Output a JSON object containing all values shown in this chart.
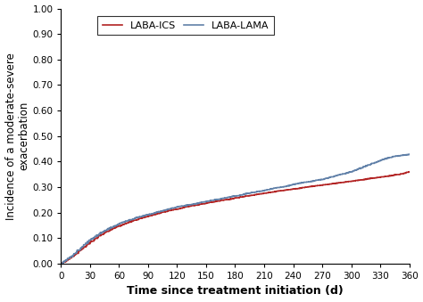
{
  "xlabel": "Time since treatment initiation (d)",
  "ylabel": "Incidence of a moderate-severe\nexacerbation",
  "xlim": [
    0,
    360
  ],
  "ylim": [
    0.0,
    1.0
  ],
  "xticks": [
    0,
    30,
    60,
    90,
    120,
    150,
    180,
    210,
    240,
    270,
    300,
    330,
    360
  ],
  "yticks": [
    0.0,
    0.1,
    0.2,
    0.3,
    0.4,
    0.5,
    0.6,
    0.7,
    0.8,
    0.9,
    1.0
  ],
  "laba_ics_color": "#b22222",
  "laba_lama_color": "#6080a8",
  "laba_ics_label": "LABA-ICS",
  "laba_lama_label": "LABA-LAMA",
  "line_width": 1.2,
  "laba_ics_x": [
    0,
    2,
    4,
    6,
    8,
    10,
    12,
    14,
    16,
    18,
    20,
    22,
    24,
    26,
    28,
    30,
    32,
    34,
    36,
    38,
    40,
    42,
    44,
    46,
    48,
    50,
    52,
    54,
    56,
    58,
    60,
    62,
    64,
    66,
    68,
    70,
    72,
    74,
    76,
    78,
    80,
    82,
    84,
    86,
    88,
    90,
    92,
    94,
    96,
    98,
    100,
    102,
    104,
    106,
    108,
    110,
    112,
    114,
    116,
    118,
    120,
    122,
    124,
    126,
    128,
    130,
    132,
    134,
    136,
    138,
    140,
    142,
    144,
    146,
    148,
    150,
    152,
    154,
    156,
    158,
    160,
    162,
    164,
    166,
    168,
    170,
    172,
    174,
    176,
    178,
    180,
    182,
    184,
    186,
    188,
    190,
    192,
    194,
    196,
    198,
    200,
    202,
    204,
    206,
    208,
    210,
    212,
    214,
    216,
    218,
    220,
    222,
    224,
    226,
    228,
    230,
    232,
    234,
    236,
    238,
    240,
    242,
    244,
    246,
    248,
    250,
    252,
    254,
    256,
    258,
    260,
    262,
    264,
    266,
    268,
    270,
    272,
    274,
    276,
    278,
    280,
    282,
    284,
    286,
    288,
    290,
    292,
    294,
    296,
    298,
    300,
    302,
    304,
    306,
    308,
    310,
    312,
    314,
    316,
    318,
    320,
    322,
    324,
    326,
    328,
    330,
    332,
    334,
    336,
    338,
    340,
    342,
    344,
    346,
    348,
    350,
    352,
    354,
    356,
    358,
    360
  ],
  "laba_ics_y": [
    0.0,
    0.003,
    0.007,
    0.012,
    0.017,
    0.022,
    0.028,
    0.034,
    0.04,
    0.047,
    0.053,
    0.059,
    0.065,
    0.071,
    0.077,
    0.083,
    0.088,
    0.093,
    0.099,
    0.104,
    0.109,
    0.114,
    0.118,
    0.122,
    0.126,
    0.13,
    0.134,
    0.138,
    0.141,
    0.144,
    0.147,
    0.15,
    0.153,
    0.156,
    0.159,
    0.162,
    0.164,
    0.167,
    0.17,
    0.172,
    0.175,
    0.177,
    0.18,
    0.182,
    0.184,
    0.186,
    0.188,
    0.19,
    0.192,
    0.194,
    0.196,
    0.198,
    0.2,
    0.202,
    0.204,
    0.206,
    0.208,
    0.21,
    0.211,
    0.212,
    0.213,
    0.215,
    0.217,
    0.219,
    0.221,
    0.223,
    0.224,
    0.225,
    0.227,
    0.228,
    0.229,
    0.231,
    0.233,
    0.234,
    0.235,
    0.237,
    0.238,
    0.24,
    0.241,
    0.242,
    0.244,
    0.245,
    0.246,
    0.248,
    0.249,
    0.25,
    0.251,
    0.252,
    0.254,
    0.255,
    0.257,
    0.258,
    0.259,
    0.261,
    0.262,
    0.264,
    0.265,
    0.266,
    0.267,
    0.268,
    0.27,
    0.271,
    0.272,
    0.273,
    0.274,
    0.276,
    0.277,
    0.278,
    0.279,
    0.28,
    0.281,
    0.283,
    0.284,
    0.285,
    0.286,
    0.287,
    0.288,
    0.289,
    0.29,
    0.291,
    0.292,
    0.293,
    0.294,
    0.295,
    0.296,
    0.298,
    0.299,
    0.3,
    0.301,
    0.302,
    0.303,
    0.304,
    0.305,
    0.306,
    0.307,
    0.308,
    0.309,
    0.31,
    0.311,
    0.312,
    0.313,
    0.314,
    0.315,
    0.316,
    0.317,
    0.318,
    0.319,
    0.32,
    0.321,
    0.322,
    0.323,
    0.324,
    0.325,
    0.326,
    0.327,
    0.328,
    0.329,
    0.33,
    0.332,
    0.333,
    0.334,
    0.335,
    0.336,
    0.337,
    0.338,
    0.339,
    0.34,
    0.341,
    0.342,
    0.343,
    0.344,
    0.345,
    0.347,
    0.348,
    0.349,
    0.35,
    0.352,
    0.354,
    0.356,
    0.358,
    0.36,
    0.362,
    0.364,
    0.366,
    0.368,
    0.37,
    0.372,
    0.373,
    0.374,
    0.375,
    0.376
  ],
  "laba_lama_x": [
    0,
    2,
    4,
    6,
    8,
    10,
    12,
    14,
    16,
    18,
    20,
    22,
    24,
    26,
    28,
    30,
    32,
    34,
    36,
    38,
    40,
    42,
    44,
    46,
    48,
    50,
    52,
    54,
    56,
    58,
    60,
    62,
    64,
    66,
    68,
    70,
    72,
    74,
    76,
    78,
    80,
    82,
    84,
    86,
    88,
    90,
    92,
    94,
    96,
    98,
    100,
    102,
    104,
    106,
    108,
    110,
    112,
    114,
    116,
    118,
    120,
    122,
    124,
    126,
    128,
    130,
    132,
    134,
    136,
    138,
    140,
    142,
    144,
    146,
    148,
    150,
    152,
    154,
    156,
    158,
    160,
    162,
    164,
    166,
    168,
    170,
    172,
    174,
    176,
    178,
    180,
    182,
    184,
    186,
    188,
    190,
    192,
    194,
    196,
    198,
    200,
    202,
    204,
    206,
    208,
    210,
    212,
    214,
    216,
    218,
    220,
    222,
    224,
    226,
    228,
    230,
    232,
    234,
    236,
    238,
    240,
    242,
    244,
    246,
    248,
    250,
    252,
    254,
    256,
    258,
    260,
    262,
    264,
    266,
    268,
    270,
    272,
    274,
    276,
    278,
    280,
    282,
    284,
    286,
    288,
    290,
    292,
    294,
    296,
    298,
    300,
    302,
    304,
    306,
    308,
    310,
    312,
    314,
    316,
    318,
    320,
    322,
    324,
    326,
    328,
    330,
    332,
    334,
    336,
    338,
    340,
    342,
    344,
    346,
    348,
    350,
    352,
    354,
    356,
    358,
    360
  ],
  "laba_lama_y": [
    0.0,
    0.004,
    0.009,
    0.014,
    0.02,
    0.026,
    0.032,
    0.039,
    0.046,
    0.053,
    0.06,
    0.067,
    0.074,
    0.08,
    0.086,
    0.092,
    0.097,
    0.102,
    0.107,
    0.112,
    0.117,
    0.122,
    0.126,
    0.13,
    0.134,
    0.138,
    0.142,
    0.146,
    0.149,
    0.152,
    0.156,
    0.159,
    0.162,
    0.165,
    0.167,
    0.17,
    0.172,
    0.175,
    0.177,
    0.18,
    0.182,
    0.184,
    0.186,
    0.188,
    0.19,
    0.192,
    0.194,
    0.196,
    0.198,
    0.2,
    0.202,
    0.204,
    0.206,
    0.208,
    0.21,
    0.212,
    0.214,
    0.216,
    0.218,
    0.22,
    0.222,
    0.224,
    0.225,
    0.226,
    0.227,
    0.229,
    0.23,
    0.231,
    0.232,
    0.234,
    0.235,
    0.237,
    0.239,
    0.241,
    0.242,
    0.244,
    0.245,
    0.247,
    0.248,
    0.249,
    0.251,
    0.252,
    0.253,
    0.255,
    0.256,
    0.258,
    0.26,
    0.261,
    0.262,
    0.264,
    0.265,
    0.266,
    0.267,
    0.269,
    0.271,
    0.273,
    0.275,
    0.276,
    0.277,
    0.279,
    0.28,
    0.282,
    0.283,
    0.284,
    0.285,
    0.286,
    0.288,
    0.29,
    0.292,
    0.294,
    0.296,
    0.297,
    0.298,
    0.299,
    0.3,
    0.301,
    0.302,
    0.304,
    0.306,
    0.308,
    0.31,
    0.312,
    0.313,
    0.315,
    0.316,
    0.318,
    0.319,
    0.32,
    0.321,
    0.322,
    0.323,
    0.325,
    0.327,
    0.328,
    0.329,
    0.33,
    0.332,
    0.334,
    0.336,
    0.338,
    0.34,
    0.342,
    0.344,
    0.346,
    0.348,
    0.35,
    0.352,
    0.354,
    0.356,
    0.358,
    0.36,
    0.363,
    0.366,
    0.369,
    0.372,
    0.375,
    0.378,
    0.381,
    0.384,
    0.387,
    0.39,
    0.393,
    0.396,
    0.399,
    0.402,
    0.405,
    0.408,
    0.41,
    0.412,
    0.414,
    0.416,
    0.418,
    0.42,
    0.421,
    0.422,
    0.423,
    0.424,
    0.425,
    0.426,
    0.427,
    0.428,
    0.429,
    0.43,
    0.431,
    0.432,
    0.433,
    0.434,
    0.435,
    0.437,
    0.439,
    0.42
  ]
}
